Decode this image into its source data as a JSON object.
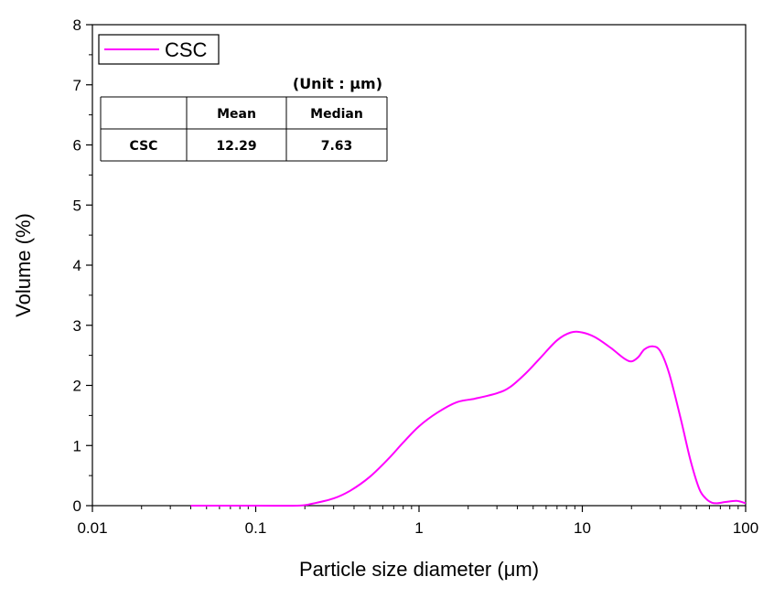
{
  "chart_data": {
    "type": "line",
    "title": "",
    "xlabel": "Particle size diameter (μm)",
    "ylabel": "Volume (%)",
    "xscale": "log",
    "xlim": [
      0.01,
      100
    ],
    "ylim": [
      0,
      8
    ],
    "x_ticks": [
      0.01,
      0.1,
      1,
      10,
      100
    ],
    "x_tick_labels": [
      "0.01",
      "0.1",
      "1",
      "10",
      "100"
    ],
    "y_ticks": [
      0,
      1,
      2,
      3,
      4,
      5,
      6,
      7,
      8
    ],
    "y_tick_labels": [
      "0",
      "1",
      "2",
      "3",
      "4",
      "5",
      "6",
      "7",
      "8"
    ],
    "grid": false,
    "legend": {
      "position": "top-left",
      "entries": [
        "CSC"
      ]
    },
    "series": [
      {
        "name": "CSC",
        "color": "#ff00ff",
        "x": [
          0.04,
          0.1,
          0.18,
          0.22,
          0.3,
          0.38,
          0.5,
          0.65,
          0.8,
          1.0,
          1.3,
          1.7,
          2.2,
          3.0,
          3.6,
          4.5,
          5.5,
          7.0,
          8.5,
          10.0,
          12.0,
          15.0,
          18.0,
          20.0,
          22.0,
          24.0,
          27.0,
          30.0,
          34.0,
          40.0,
          46.0,
          52.0,
          57.0,
          62.0,
          67.0,
          75.0,
          88.0,
          100.0
        ],
        "y": [
          0,
          0,
          0,
          0.03,
          0.12,
          0.25,
          0.48,
          0.78,
          1.05,
          1.32,
          1.55,
          1.72,
          1.78,
          1.87,
          1.97,
          2.2,
          2.45,
          2.75,
          2.88,
          2.88,
          2.8,
          2.62,
          2.45,
          2.4,
          2.47,
          2.6,
          2.65,
          2.57,
          2.2,
          1.45,
          0.75,
          0.28,
          0.12,
          0.05,
          0.04,
          0.06,
          0.08,
          0.04
        ]
      }
    ],
    "inset_table": {
      "unit": "(Unit : μm)",
      "headers": [
        "",
        "Mean",
        "Median"
      ],
      "rows": [
        [
          "CSC",
          "12.29",
          "7.63"
        ]
      ]
    }
  }
}
